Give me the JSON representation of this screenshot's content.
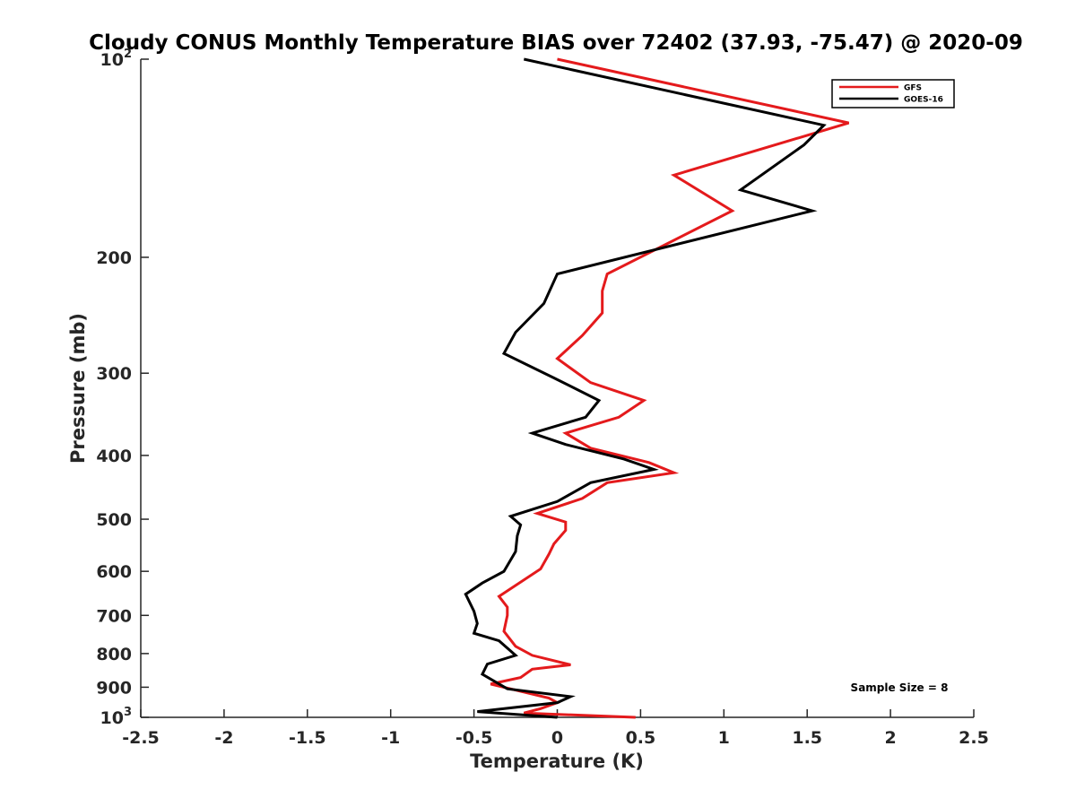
{
  "chart_data": {
    "type": "line",
    "title": "Cloudy CONUS Monthly Temperature BIAS over 72402 (37.93, -75.47) @ 2020-09",
    "xlabel": "Temperature (K)",
    "ylabel": "Pressure (mb)",
    "xlim": [
      -2.5,
      2.5
    ],
    "ylim": [
      100,
      1000
    ],
    "y_scale": "log",
    "y_reversed": true,
    "grid": false,
    "legend_position": "top-right",
    "x_ticks": [
      "-2.5",
      "-2",
      "-1.5",
      "-1",
      "-0.5",
      "0",
      "0.5",
      "1",
      "1.5",
      "2",
      "2.5"
    ],
    "x_tick_values": [
      -2.5,
      -2,
      -1.5,
      -1,
      -0.5,
      0,
      0.5,
      1,
      1.5,
      2,
      2.5
    ],
    "y_ticks": [
      {
        "value": 100,
        "base": "10",
        "exp": "2"
      },
      {
        "value": 200,
        "base": "200",
        "exp": ""
      },
      {
        "value": 300,
        "base": "300",
        "exp": ""
      },
      {
        "value": 400,
        "base": "400",
        "exp": ""
      },
      {
        "value": 500,
        "base": "500",
        "exp": ""
      },
      {
        "value": 600,
        "base": "600",
        "exp": ""
      },
      {
        "value": 700,
        "base": "700",
        "exp": ""
      },
      {
        "value": 800,
        "base": "800",
        "exp": ""
      },
      {
        "value": 900,
        "base": "900",
        "exp": ""
      },
      {
        "value": 1000,
        "base": "10",
        "exp": "3"
      }
    ],
    "annotation": "Sample Size = 8",
    "series": [
      {
        "name": "GFS",
        "color": "#e41a1c",
        "points": [
          [
            0.0,
            100
          ],
          [
            1.75,
            125
          ],
          [
            0.7,
            150
          ],
          [
            1.05,
            170
          ],
          [
            0.3,
            212
          ],
          [
            0.27,
            225
          ],
          [
            0.27,
            243
          ],
          [
            0.15,
            263
          ],
          [
            0.0,
            285
          ],
          [
            0.2,
            310
          ],
          [
            0.52,
            330
          ],
          [
            0.37,
            350
          ],
          [
            0.05,
            370
          ],
          [
            0.2,
            390
          ],
          [
            0.55,
            410
          ],
          [
            0.7,
            425
          ],
          [
            0.3,
            440
          ],
          [
            0.15,
            465
          ],
          [
            -0.12,
            490
          ],
          [
            0.05,
            505
          ],
          [
            0.05,
            520
          ],
          [
            -0.02,
            545
          ],
          [
            -0.05,
            565
          ],
          [
            -0.1,
            595
          ],
          [
            -0.35,
            655
          ],
          [
            -0.3,
            680
          ],
          [
            -0.3,
            700
          ],
          [
            -0.32,
            740
          ],
          [
            -0.25,
            780
          ],
          [
            -0.15,
            805
          ],
          [
            0.08,
            832
          ],
          [
            -0.15,
            845
          ],
          [
            -0.22,
            870
          ],
          [
            -0.4,
            890
          ],
          [
            -0.05,
            935
          ],
          [
            0.0,
            950
          ],
          [
            -0.1,
            970
          ],
          [
            -0.2,
            985
          ],
          [
            0.47,
            1000
          ]
        ]
      },
      {
        "name": "GOES-16",
        "color": "#000000",
        "points": [
          [
            -0.2,
            100
          ],
          [
            1.6,
            126
          ],
          [
            1.48,
            135
          ],
          [
            1.1,
            158
          ],
          [
            1.53,
            170
          ],
          [
            0.0,
            212
          ],
          [
            -0.08,
            235
          ],
          [
            -0.25,
            260
          ],
          [
            -0.32,
            280
          ],
          [
            -0.02,
            305
          ],
          [
            0.25,
            330
          ],
          [
            0.17,
            350
          ],
          [
            -0.15,
            370
          ],
          [
            0.05,
            385
          ],
          [
            0.4,
            405
          ],
          [
            0.58,
            420
          ],
          [
            0.2,
            440
          ],
          [
            0.0,
            470
          ],
          [
            -0.28,
            495
          ],
          [
            -0.22,
            510
          ],
          [
            -0.24,
            530
          ],
          [
            -0.25,
            560
          ],
          [
            -0.32,
            600
          ],
          [
            -0.45,
            625
          ],
          [
            -0.55,
            650
          ],
          [
            -0.5,
            690
          ],
          [
            -0.48,
            720
          ],
          [
            -0.5,
            745
          ],
          [
            -0.35,
            765
          ],
          [
            -0.25,
            805
          ],
          [
            -0.42,
            830
          ],
          [
            -0.45,
            860
          ],
          [
            -0.3,
            905
          ],
          [
            0.08,
            930
          ],
          [
            0.0,
            950
          ],
          [
            -0.48,
            980
          ],
          [
            0.0,
            1000
          ]
        ]
      }
    ]
  }
}
